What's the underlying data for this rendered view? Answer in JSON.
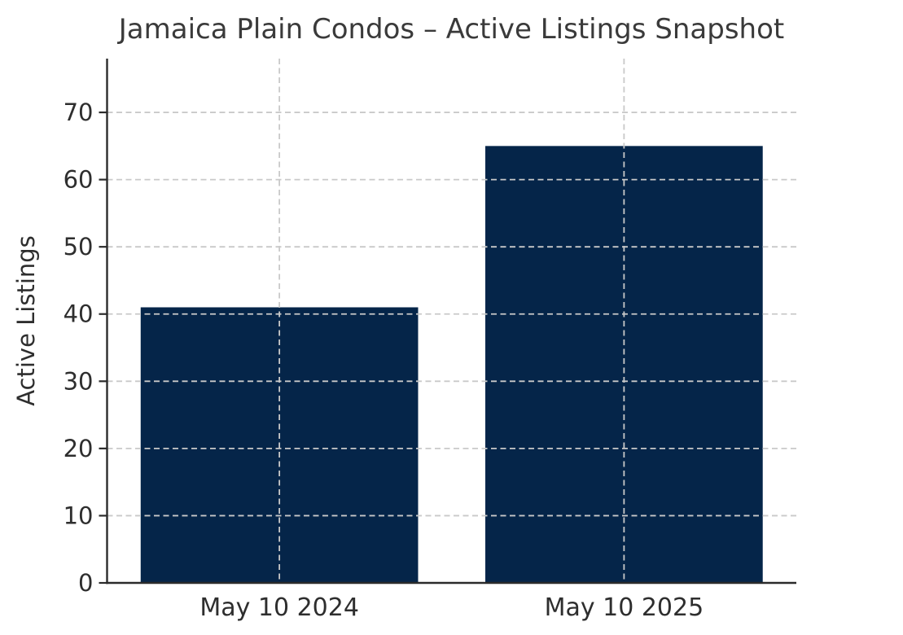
{
  "chart_data": {
    "type": "bar",
    "title": "Jamaica Plain Condos – Active Listings Snapshot",
    "categories": [
      "May 10 2024",
      "May 10 2025"
    ],
    "values": [
      41,
      65
    ],
    "xlabel": "",
    "ylabel": "Active Listings",
    "ylim": [
      0,
      78
    ],
    "yticks": [
      0,
      10,
      20,
      30,
      40,
      50,
      60,
      70
    ],
    "grid": true,
    "grid_style": "dashed",
    "legend": "none",
    "colors": {
      "bar": "#052549",
      "grid": "#c9c9c9",
      "axis": "#2b2b2b",
      "tick_text": "#2e2e2e",
      "title_text": "#3a3a3a"
    }
  }
}
